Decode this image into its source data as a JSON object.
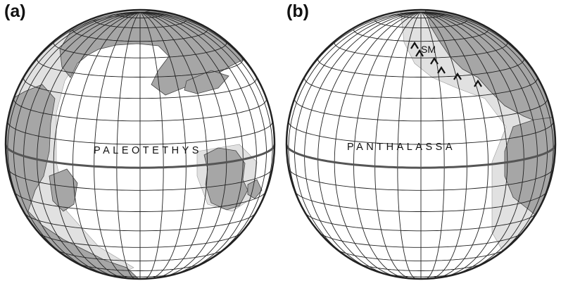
{
  "panels": [
    {
      "label": "(a)",
      "ocean_label": "PALEOTETHYS"
    },
    {
      "label": "(b)",
      "ocean_label": "PANTHALASSA",
      "feature_label": "SM"
    }
  ],
  "colors": {
    "land": "#a6a6a6",
    "shelf": "#e1e1e1",
    "ocean": "#ffffff",
    "grid": "#222222",
    "coast": "#444444"
  }
}
